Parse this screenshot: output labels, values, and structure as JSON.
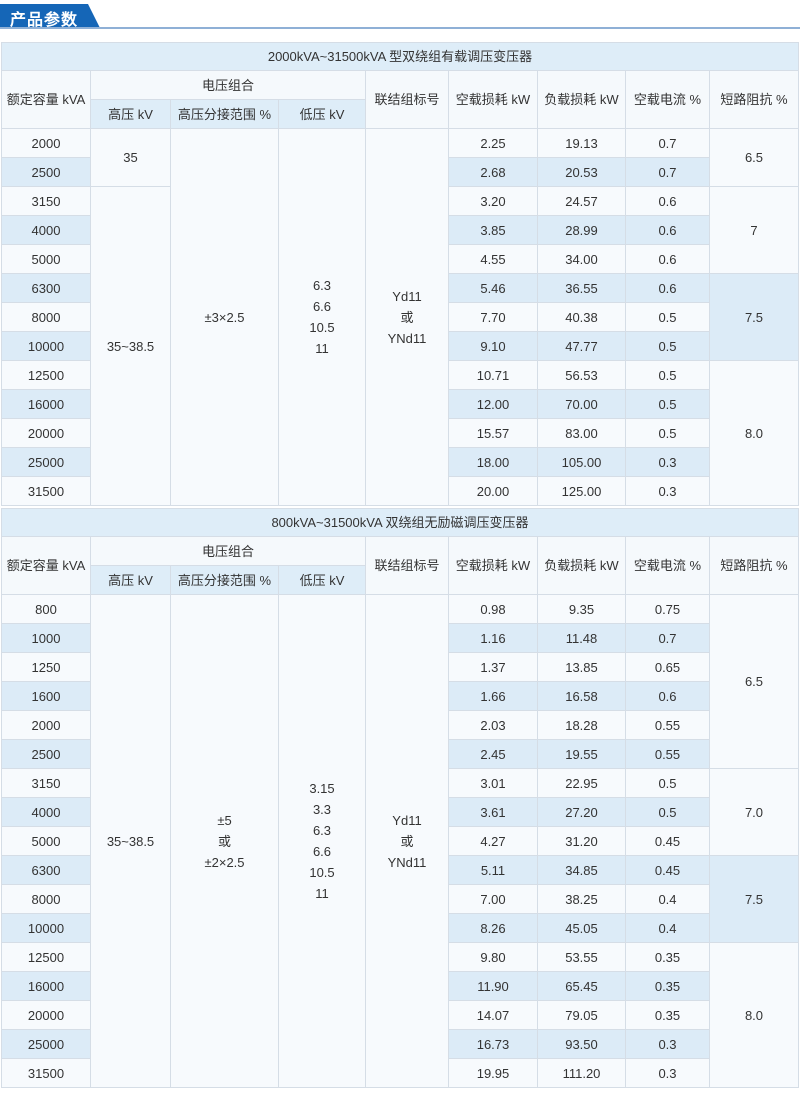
{
  "section_title": "产品参数",
  "colors": {
    "accent": "#1566b7",
    "row_shade": "#dcebf7"
  },
  "headers": {
    "capacity": "额定容量 kVA",
    "voltage_group": "电压组合",
    "hv": "高压 kV",
    "tap_range": "高压分接范围 %",
    "lv": "低压 kV",
    "vector_group": "联结组标号",
    "no_load_loss": "空载损耗 kW",
    "load_loss": "负载损耗 kW",
    "no_load_current": "空载电流 %",
    "impedance": "短路阻抗 %"
  },
  "tables": [
    {
      "title": "2000kVA~31500kVA 型双绕组有载调压变压器",
      "rows": [
        [
          "2000",
          "2.25",
          "19.13",
          "0.7"
        ],
        [
          "2500",
          "2.68",
          "20.53",
          "0.7"
        ],
        [
          "3150",
          "3.20",
          "24.57",
          "0.6"
        ],
        [
          "4000",
          "3.85",
          "28.99",
          "0.6"
        ],
        [
          "5000",
          "4.55",
          "34.00",
          "0.6"
        ],
        [
          "6300",
          "5.46",
          "36.55",
          "0.6"
        ],
        [
          "8000",
          "7.70",
          "40.38",
          "0.5"
        ],
        [
          "10000",
          "9.10",
          "47.77",
          "0.5"
        ],
        [
          "12500",
          "10.71",
          "56.53",
          "0.5"
        ],
        [
          "16000",
          "12.00",
          "70.00",
          "0.5"
        ],
        [
          "20000",
          "15.57",
          "83.00",
          "0.5"
        ],
        [
          "25000",
          "18.00",
          "105.00",
          "0.3"
        ],
        [
          "31500",
          "20.00",
          "125.00",
          "0.3"
        ]
      ],
      "hv_groups": [
        {
          "value": "35",
          "span": 2
        },
        {
          "value": "35~38.5",
          "span": 11
        }
      ],
      "tap_range": [
        "±3×2.5"
      ],
      "lv": [
        "6.3",
        "6.6",
        "10.5",
        "11"
      ],
      "vector_group": [
        "Yd11",
        "或",
        "YNd11"
      ],
      "impedance_groups": [
        {
          "value": "6.5",
          "span": 2
        },
        {
          "value": "7",
          "span": 3
        },
        {
          "value": "7.5",
          "span": 3,
          "shaded": true
        },
        {
          "value": "8.0",
          "span": 5
        }
      ]
    },
    {
      "title": "800kVA~31500kVA 双绕组无励磁调压变压器",
      "rows": [
        [
          "800",
          "0.98",
          "9.35",
          "0.75"
        ],
        [
          "1000",
          "1.16",
          "11.48",
          "0.7"
        ],
        [
          "1250",
          "1.37",
          "13.85",
          "0.65"
        ],
        [
          "1600",
          "1.66",
          "16.58",
          "0.6"
        ],
        [
          "2000",
          "2.03",
          "18.28",
          "0.55"
        ],
        [
          "2500",
          "2.45",
          "19.55",
          "0.55"
        ],
        [
          "3150",
          "3.01",
          "22.95",
          "0.5"
        ],
        [
          "4000",
          "3.61",
          "27.20",
          "0.5"
        ],
        [
          "5000",
          "4.27",
          "31.20",
          "0.45"
        ],
        [
          "6300",
          "5.11",
          "34.85",
          "0.45"
        ],
        [
          "8000",
          "7.00",
          "38.25",
          "0.4"
        ],
        [
          "10000",
          "8.26",
          "45.05",
          "0.4"
        ],
        [
          "12500",
          "9.80",
          "53.55",
          "0.35"
        ],
        [
          "16000",
          "11.90",
          "65.45",
          "0.35"
        ],
        [
          "20000",
          "14.07",
          "79.05",
          "0.35"
        ],
        [
          "25000",
          "16.73",
          "93.50",
          "0.3"
        ],
        [
          "31500",
          "19.95",
          "111.20",
          "0.3"
        ]
      ],
      "hv_groups": [
        {
          "value": "35~38.5",
          "span": 17
        }
      ],
      "tap_range": [
        "±5",
        "或",
        "±2×2.5"
      ],
      "lv": [
        "3.15",
        "3.3",
        "6.3",
        "6.6",
        "10.5",
        "11"
      ],
      "vector_group": [
        "Yd11",
        "或",
        "YNd11"
      ],
      "impedance_groups": [
        {
          "value": "6.5",
          "span": 6
        },
        {
          "value": "7.0",
          "span": 3
        },
        {
          "value": "7.5",
          "span": 3,
          "shaded": true
        },
        {
          "value": "8.0",
          "span": 5
        }
      ]
    }
  ]
}
